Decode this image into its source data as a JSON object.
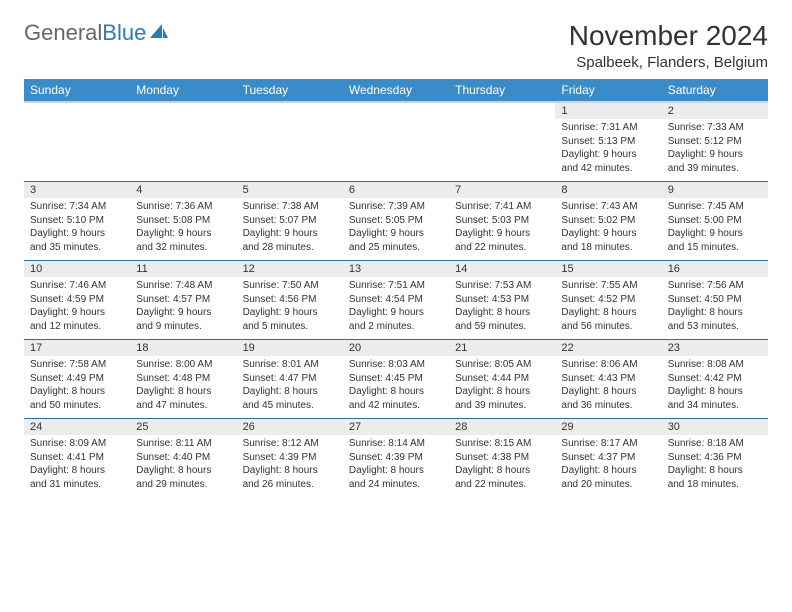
{
  "brand": {
    "name1": "General",
    "name2": "Blue"
  },
  "title": "November 2024",
  "location": "Spalbeek, Flanders, Belgium",
  "colors": {
    "header_bg": "#3b8bc9",
    "rule": "#2c6ca0",
    "daynum_bg": "#ececec",
    "text": "#333333"
  },
  "dayNames": [
    "Sunday",
    "Monday",
    "Tuesday",
    "Wednesday",
    "Thursday",
    "Friday",
    "Saturday"
  ],
  "weeks": [
    [
      null,
      null,
      null,
      null,
      null,
      {
        "n": "1",
        "sr": "Sunrise: 7:31 AM",
        "ss": "Sunset: 5:13 PM",
        "d1": "Daylight: 9 hours",
        "d2": "and 42 minutes."
      },
      {
        "n": "2",
        "sr": "Sunrise: 7:33 AM",
        "ss": "Sunset: 5:12 PM",
        "d1": "Daylight: 9 hours",
        "d2": "and 39 minutes."
      }
    ],
    [
      {
        "n": "3",
        "sr": "Sunrise: 7:34 AM",
        "ss": "Sunset: 5:10 PM",
        "d1": "Daylight: 9 hours",
        "d2": "and 35 minutes."
      },
      {
        "n": "4",
        "sr": "Sunrise: 7:36 AM",
        "ss": "Sunset: 5:08 PM",
        "d1": "Daylight: 9 hours",
        "d2": "and 32 minutes."
      },
      {
        "n": "5",
        "sr": "Sunrise: 7:38 AM",
        "ss": "Sunset: 5:07 PM",
        "d1": "Daylight: 9 hours",
        "d2": "and 28 minutes."
      },
      {
        "n": "6",
        "sr": "Sunrise: 7:39 AM",
        "ss": "Sunset: 5:05 PM",
        "d1": "Daylight: 9 hours",
        "d2": "and 25 minutes."
      },
      {
        "n": "7",
        "sr": "Sunrise: 7:41 AM",
        "ss": "Sunset: 5:03 PM",
        "d1": "Daylight: 9 hours",
        "d2": "and 22 minutes."
      },
      {
        "n": "8",
        "sr": "Sunrise: 7:43 AM",
        "ss": "Sunset: 5:02 PM",
        "d1": "Daylight: 9 hours",
        "d2": "and 18 minutes."
      },
      {
        "n": "9",
        "sr": "Sunrise: 7:45 AM",
        "ss": "Sunset: 5:00 PM",
        "d1": "Daylight: 9 hours",
        "d2": "and 15 minutes."
      }
    ],
    [
      {
        "n": "10",
        "sr": "Sunrise: 7:46 AM",
        "ss": "Sunset: 4:59 PM",
        "d1": "Daylight: 9 hours",
        "d2": "and 12 minutes."
      },
      {
        "n": "11",
        "sr": "Sunrise: 7:48 AM",
        "ss": "Sunset: 4:57 PM",
        "d1": "Daylight: 9 hours",
        "d2": "and 9 minutes."
      },
      {
        "n": "12",
        "sr": "Sunrise: 7:50 AM",
        "ss": "Sunset: 4:56 PM",
        "d1": "Daylight: 9 hours",
        "d2": "and 5 minutes."
      },
      {
        "n": "13",
        "sr": "Sunrise: 7:51 AM",
        "ss": "Sunset: 4:54 PM",
        "d1": "Daylight: 9 hours",
        "d2": "and 2 minutes."
      },
      {
        "n": "14",
        "sr": "Sunrise: 7:53 AM",
        "ss": "Sunset: 4:53 PM",
        "d1": "Daylight: 8 hours",
        "d2": "and 59 minutes."
      },
      {
        "n": "15",
        "sr": "Sunrise: 7:55 AM",
        "ss": "Sunset: 4:52 PM",
        "d1": "Daylight: 8 hours",
        "d2": "and 56 minutes."
      },
      {
        "n": "16",
        "sr": "Sunrise: 7:56 AM",
        "ss": "Sunset: 4:50 PM",
        "d1": "Daylight: 8 hours",
        "d2": "and 53 minutes."
      }
    ],
    [
      {
        "n": "17",
        "sr": "Sunrise: 7:58 AM",
        "ss": "Sunset: 4:49 PM",
        "d1": "Daylight: 8 hours",
        "d2": "and 50 minutes."
      },
      {
        "n": "18",
        "sr": "Sunrise: 8:00 AM",
        "ss": "Sunset: 4:48 PM",
        "d1": "Daylight: 8 hours",
        "d2": "and 47 minutes."
      },
      {
        "n": "19",
        "sr": "Sunrise: 8:01 AM",
        "ss": "Sunset: 4:47 PM",
        "d1": "Daylight: 8 hours",
        "d2": "and 45 minutes."
      },
      {
        "n": "20",
        "sr": "Sunrise: 8:03 AM",
        "ss": "Sunset: 4:45 PM",
        "d1": "Daylight: 8 hours",
        "d2": "and 42 minutes."
      },
      {
        "n": "21",
        "sr": "Sunrise: 8:05 AM",
        "ss": "Sunset: 4:44 PM",
        "d1": "Daylight: 8 hours",
        "d2": "and 39 minutes."
      },
      {
        "n": "22",
        "sr": "Sunrise: 8:06 AM",
        "ss": "Sunset: 4:43 PM",
        "d1": "Daylight: 8 hours",
        "d2": "and 36 minutes."
      },
      {
        "n": "23",
        "sr": "Sunrise: 8:08 AM",
        "ss": "Sunset: 4:42 PM",
        "d1": "Daylight: 8 hours",
        "d2": "and 34 minutes."
      }
    ],
    [
      {
        "n": "24",
        "sr": "Sunrise: 8:09 AM",
        "ss": "Sunset: 4:41 PM",
        "d1": "Daylight: 8 hours",
        "d2": "and 31 minutes."
      },
      {
        "n": "25",
        "sr": "Sunrise: 8:11 AM",
        "ss": "Sunset: 4:40 PM",
        "d1": "Daylight: 8 hours",
        "d2": "and 29 minutes."
      },
      {
        "n": "26",
        "sr": "Sunrise: 8:12 AM",
        "ss": "Sunset: 4:39 PM",
        "d1": "Daylight: 8 hours",
        "d2": "and 26 minutes."
      },
      {
        "n": "27",
        "sr": "Sunrise: 8:14 AM",
        "ss": "Sunset: 4:39 PM",
        "d1": "Daylight: 8 hours",
        "d2": "and 24 minutes."
      },
      {
        "n": "28",
        "sr": "Sunrise: 8:15 AM",
        "ss": "Sunset: 4:38 PM",
        "d1": "Daylight: 8 hours",
        "d2": "and 22 minutes."
      },
      {
        "n": "29",
        "sr": "Sunrise: 8:17 AM",
        "ss": "Sunset: 4:37 PM",
        "d1": "Daylight: 8 hours",
        "d2": "and 20 minutes."
      },
      {
        "n": "30",
        "sr": "Sunrise: 8:18 AM",
        "ss": "Sunset: 4:36 PM",
        "d1": "Daylight: 8 hours",
        "d2": "and 18 minutes."
      }
    ]
  ]
}
